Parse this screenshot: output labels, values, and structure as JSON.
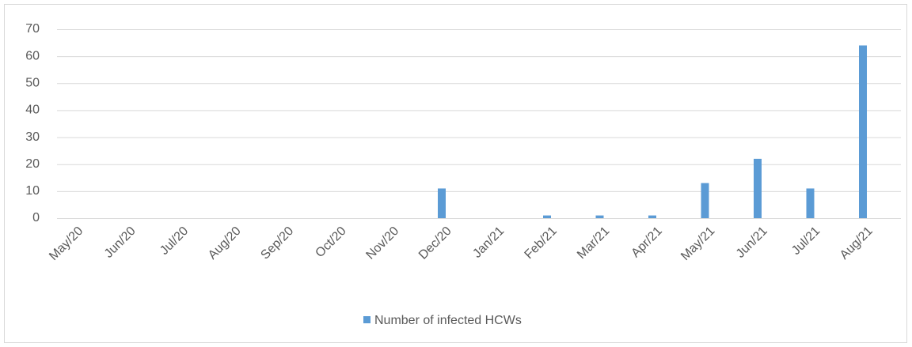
{
  "chart_data": {
    "type": "bar",
    "categories": [
      "May/20",
      "Jun/20",
      "Jul/20",
      "Aug/20",
      "Sep/20",
      "Oct/20",
      "Nov/20",
      "Dec/20",
      "Jan/21",
      "Feb/21",
      "Mar/21",
      "Apr/21",
      "May/21",
      "Jun/21",
      "Jul/21",
      "Aug/21"
    ],
    "series": [
      {
        "name": "Number of infected HCWs",
        "color": "#5b9bd5",
        "values": [
          0,
          0,
          0,
          0,
          0,
          0,
          0,
          11,
          0,
          1,
          1,
          1,
          13,
          22,
          11,
          64
        ]
      }
    ],
    "ylim": [
      0,
      70
    ],
    "yticks": [
      0,
      10,
      20,
      30,
      40,
      50,
      60,
      70
    ],
    "grid": true,
    "legend": "bottom"
  }
}
